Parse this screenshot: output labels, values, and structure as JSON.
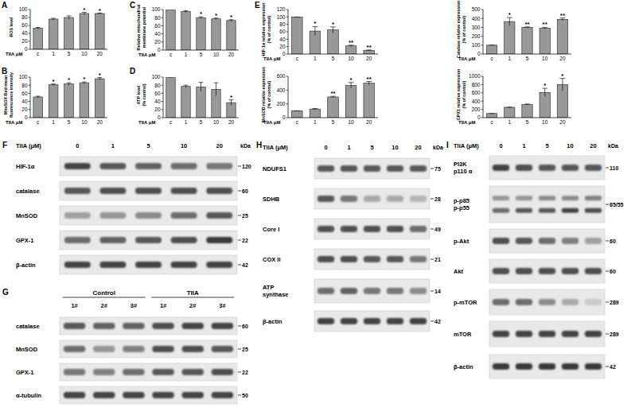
{
  "chart_data": [
    {
      "type": "bar",
      "panel_label": "A",
      "ylabel": [
        "ROS level"
      ],
      "xlabel": "TIIA μM",
      "categories": [
        "c",
        "1",
        "5",
        "10",
        "20"
      ],
      "values": [
        53,
        76,
        80,
        90,
        90
      ],
      "errors": [
        2,
        2,
        4,
        3,
        1
      ],
      "significance": [
        null,
        null,
        null,
        "*",
        "*"
      ],
      "color": "#999999",
      "ylim": [
        0,
        100
      ],
      "yticks": [
        0,
        20,
        40,
        60,
        80,
        100
      ]
    },
    {
      "type": "bar",
      "panel_label": "B",
      "ylabel": [
        "MitoSOX Red mean",
        "fluorescence intensity"
      ],
      "xlabel": "TIIA μM",
      "categories": [
        "c",
        "1",
        "5",
        "10",
        "20"
      ],
      "values": [
        51,
        81,
        83,
        86,
        96
      ],
      "errors": [
        2,
        2,
        3,
        2,
        3
      ],
      "significance": [
        null,
        "*",
        "*",
        "*",
        "*"
      ],
      "color": "#999999",
      "ylim": [
        0,
        100
      ],
      "yticks": [
        0,
        20,
        40,
        60,
        80,
        100
      ]
    },
    {
      "type": "bar",
      "panel_label": "C",
      "ylabel": [
        "Relative mitochondrial",
        "membrane potential"
      ],
      "xlabel": "TIIA μM",
      "categories": [
        "c",
        "1",
        "5",
        "10",
        "20"
      ],
      "values": [
        100,
        95,
        80,
        77,
        73
      ],
      "errors": [
        1,
        2,
        2,
        2,
        2
      ],
      "significance": [
        null,
        null,
        "*",
        "*",
        "*"
      ],
      "color": "#999999",
      "ylim": [
        0,
        100
      ],
      "yticks": [
        0,
        20,
        40,
        60,
        80,
        100
      ]
    },
    {
      "type": "bar",
      "panel_label": "D",
      "ylabel": [
        "ATP level",
        "(% control)"
      ],
      "xlabel": "TIIA μM",
      "categories": [
        "c",
        "1",
        "5",
        "10",
        "20"
      ],
      "values": [
        100,
        77,
        76,
        70,
        37
      ],
      "errors": [
        0,
        3,
        11,
        16,
        7
      ],
      "significance": [
        null,
        null,
        null,
        null,
        "*"
      ],
      "color": "#999999",
      "ylim": [
        0,
        100
      ],
      "yticks": [
        0,
        20,
        40,
        60,
        80,
        100
      ]
    },
    {
      "type": "bar",
      "panel_label": "E",
      "ylabel": [
        "HIF-1α relative expression",
        "(% of control)"
      ],
      "xlabel": "TIIA μM",
      "categories": [
        "c",
        "1",
        "5",
        "10",
        "20"
      ],
      "values": [
        100,
        62,
        65,
        22,
        10
      ],
      "errors": [
        0,
        12,
        8,
        2,
        1
      ],
      "significance": [
        null,
        "*",
        "*",
        "**",
        "**"
      ],
      "color": "#999999",
      "ylim": [
        0,
        120
      ],
      "yticks": [
        0,
        20,
        40,
        60,
        80,
        100,
        120
      ]
    },
    {
      "type": "bar",
      "ylabel": [
        "Catalase relative expression",
        "(% of control)"
      ],
      "xlabel": "TIIA μM",
      "categories": [
        "c",
        "1",
        "5",
        "10",
        "20"
      ],
      "values": [
        100,
        365,
        300,
        290,
        390
      ],
      "errors": [
        0,
        45,
        5,
        10,
        15
      ],
      "significance": [
        null,
        "*",
        "**",
        "**",
        "**"
      ],
      "color": "#999999",
      "ylim": [
        0,
        500
      ],
      "yticks": [
        0,
        100,
        200,
        300,
        400,
        500
      ]
    },
    {
      "type": "bar",
      "ylabel": [
        "MnSOD relative expression",
        "(% of control)"
      ],
      "xlabel": "TIIA μM",
      "categories": [
        "c",
        "1",
        "5",
        "10",
        "20"
      ],
      "values": [
        100,
        125,
        300,
        470,
        500
      ],
      "errors": [
        0,
        8,
        10,
        40,
        25
      ],
      "significance": [
        null,
        null,
        "**",
        "*",
        "**"
      ],
      "color": "#999999",
      "ylim": [
        0,
        600
      ],
      "yticks": [
        0,
        200,
        400,
        600
      ]
    },
    {
      "type": "bar",
      "ylabel": [
        "GPX1 relative expression",
        "(% of control)"
      ],
      "xlabel": "TIIA μM",
      "categories": [
        "c",
        "1",
        "5",
        "10",
        "20"
      ],
      "values": [
        100,
        250,
        320,
        610,
        800
      ],
      "errors": [
        0,
        5,
        10,
        100,
        150
      ],
      "significance": [
        null,
        null,
        null,
        "*",
        "*"
      ],
      "color": "#999999",
      "ylim": [
        0,
        1000
      ],
      "yticks": [
        0,
        200,
        400,
        600,
        800,
        1000
      ]
    }
  ],
  "blots": [
    {
      "panel_label": "F",
      "header": "TIIA (μM)",
      "lanes": [
        "0",
        "1",
        "5",
        "10",
        "20"
      ],
      "unit": "kDa",
      "rows": [
        {
          "label": [
            "HIF-1α"
          ],
          "kda": 120,
          "intensity": [
            0.8,
            0.7,
            0.65,
            0.6,
            0.55
          ]
        },
        {
          "label": [
            "catalase"
          ],
          "kda": 60,
          "intensity": [
            0.7,
            0.75,
            0.75,
            0.75,
            0.75
          ]
        },
        {
          "label": [
            "MnSOD"
          ],
          "kda": 25,
          "intensity": [
            0.35,
            0.4,
            0.45,
            0.6,
            0.7
          ]
        },
        {
          "label": [
            "GPX-1"
          ],
          "kda": 22,
          "intensity": [
            0.6,
            0.65,
            0.7,
            0.75,
            0.85
          ]
        },
        {
          "label": [
            "β-actin"
          ],
          "kda": 42,
          "intensity": [
            0.8,
            0.8,
            0.8,
            0.8,
            0.8
          ]
        }
      ]
    },
    {
      "panel_label": "G",
      "groups": [
        {
          "label": "Control",
          "lanes": [
            "1#",
            "2#",
            "3#"
          ]
        },
        {
          "label": "TIIA",
          "lanes": [
            "1#",
            "2#",
            "3#"
          ]
        }
      ],
      "rows": [
        {
          "label": [
            "catalase"
          ],
          "kda": 60,
          "intensity": [
            0.7,
            0.65,
            0.65,
            0.75,
            0.8,
            0.8
          ]
        },
        {
          "label": [
            "MnSOD"
          ],
          "kda": 25,
          "intensity": [
            0.6,
            0.4,
            0.5,
            0.75,
            0.75,
            0.7
          ]
        },
        {
          "label": [
            "GPX-1"
          ],
          "kda": 22,
          "intensity": [
            0.55,
            0.5,
            0.6,
            0.7,
            0.7,
            0.75
          ]
        },
        {
          "label": [
            "α-tubulin"
          ],
          "kda": 50,
          "intensity": [
            0.8,
            0.8,
            0.8,
            0.8,
            0.8,
            0.8
          ]
        }
      ]
    },
    {
      "panel_label": "H",
      "header": "TIIA (μM)",
      "lanes": [
        "0",
        "1",
        "5",
        "10",
        "20"
      ],
      "unit": "kDa",
      "rows": [
        {
          "label": [
            "NDUFS1"
          ],
          "kda": 75,
          "intensity": [
            0.7,
            0.7,
            0.7,
            0.7,
            0.7
          ]
        },
        {
          "label": [
            "SDHB"
          ],
          "kda": 28,
          "intensity": [
            0.7,
            0.55,
            0.3,
            0.3,
            0.25
          ]
        },
        {
          "label": [
            "Core I"
          ],
          "kda": 49,
          "intensity": [
            0.75,
            0.75,
            0.75,
            0.75,
            0.6
          ]
        },
        {
          "label": [
            "COX II"
          ],
          "kda": 21,
          "intensity": [
            0.75,
            0.75,
            0.7,
            0.7,
            0.55
          ]
        },
        {
          "label": [
            "ATP",
            "synthase"
          ],
          "kda": 14,
          "intensity": [
            0.6,
            0.65,
            0.55,
            0.55,
            0.45
          ]
        },
        {
          "label": [
            "β-actin"
          ],
          "kda": 42,
          "intensity": [
            0.8,
            0.8,
            0.8,
            0.8,
            0.8
          ]
        }
      ]
    },
    {
      "panel_label": "I",
      "header": "TIIA (μM)",
      "lanes": [
        "0",
        "1",
        "5",
        "10",
        "20"
      ],
      "unit": "kDa",
      "rows": [
        {
          "label": [
            "PI3K",
            "p110 α"
          ],
          "kda": 110,
          "intensity": [
            0.8,
            0.75,
            0.7,
            0.7,
            0.7
          ]
        },
        {
          "label": [
            "p-p85",
            "p-p55"
          ],
          "kda": "85/55",
          "intensity": [
            [
              0.4,
              0.4,
              0.45,
              0.45,
              0.5
            ],
            [
              0.6,
              0.7,
              0.7,
              0.8,
              0.75
            ]
          ]
        },
        {
          "label": [
            "p-Akt"
          ],
          "kda": 60,
          "intensity": [
            0.75,
            0.7,
            0.6,
            0.5,
            0.35
          ]
        },
        {
          "label": [
            "Akt"
          ],
          "kda": 60,
          "intensity": [
            0.75,
            0.75,
            0.75,
            0.75,
            0.75
          ]
        },
        {
          "label": [
            "p-mTOR"
          ],
          "kda": 289,
          "intensity": [
            0.6,
            0.6,
            0.45,
            0.3,
            0.15
          ]
        },
        {
          "label": [
            "mTOR"
          ],
          "kda": 289,
          "intensity": [
            0.8,
            0.8,
            0.8,
            0.8,
            0.8
          ]
        },
        {
          "label": [
            "β-actin"
          ],
          "kda": 42,
          "intensity": [
            0.85,
            0.85,
            0.85,
            0.85,
            0.85
          ]
        }
      ]
    }
  ]
}
